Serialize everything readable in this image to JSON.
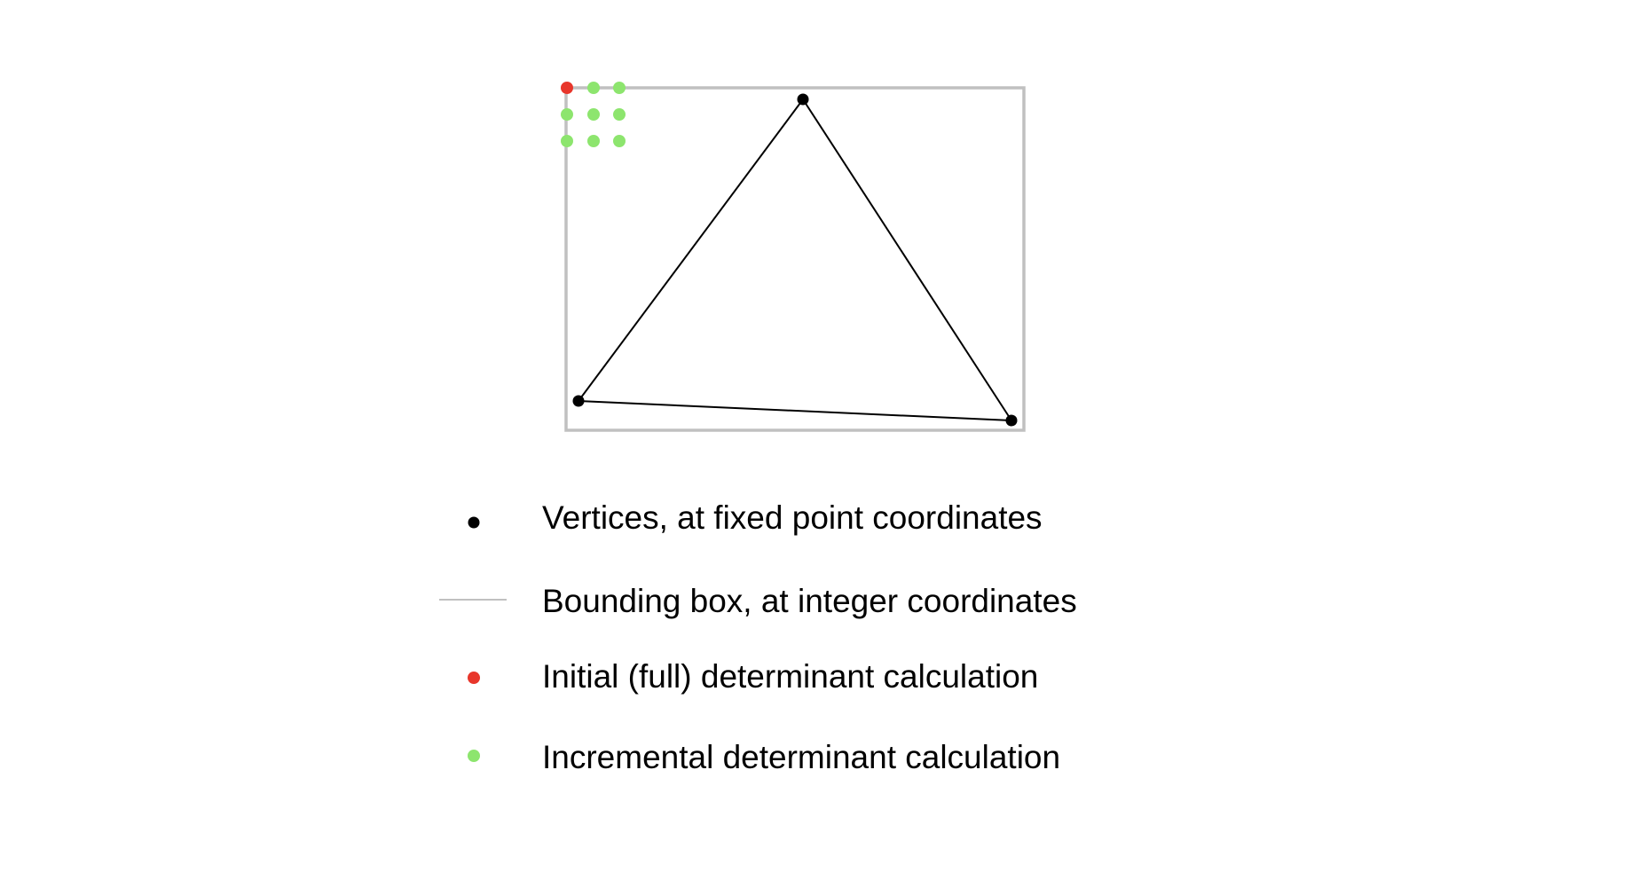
{
  "colors": {
    "vertex": "#000000",
    "edge": "#000000",
    "bounding_box": "#c0c0c0",
    "initial_sample": "#e8362b",
    "incremental_sample": "#8de56e"
  },
  "diagram": {
    "description_items": [
      "triangle",
      "bounding-box",
      "sample-grid-3x3"
    ],
    "sample_grid": {
      "rows": 3,
      "cols": 3,
      "initial_count": 1,
      "incremental_count": 8
    }
  },
  "legend": {
    "items": [
      {
        "symbol": "vertex-dot",
        "label": "Vertices, at fixed point coordinates"
      },
      {
        "symbol": "bbox-line",
        "label": "Bounding box, at integer coordinates"
      },
      {
        "symbol": "red-dot",
        "label": "Initial (full) determinant calculation"
      },
      {
        "symbol": "green-dot",
        "label": "Incremental determinant calculation"
      }
    ]
  }
}
